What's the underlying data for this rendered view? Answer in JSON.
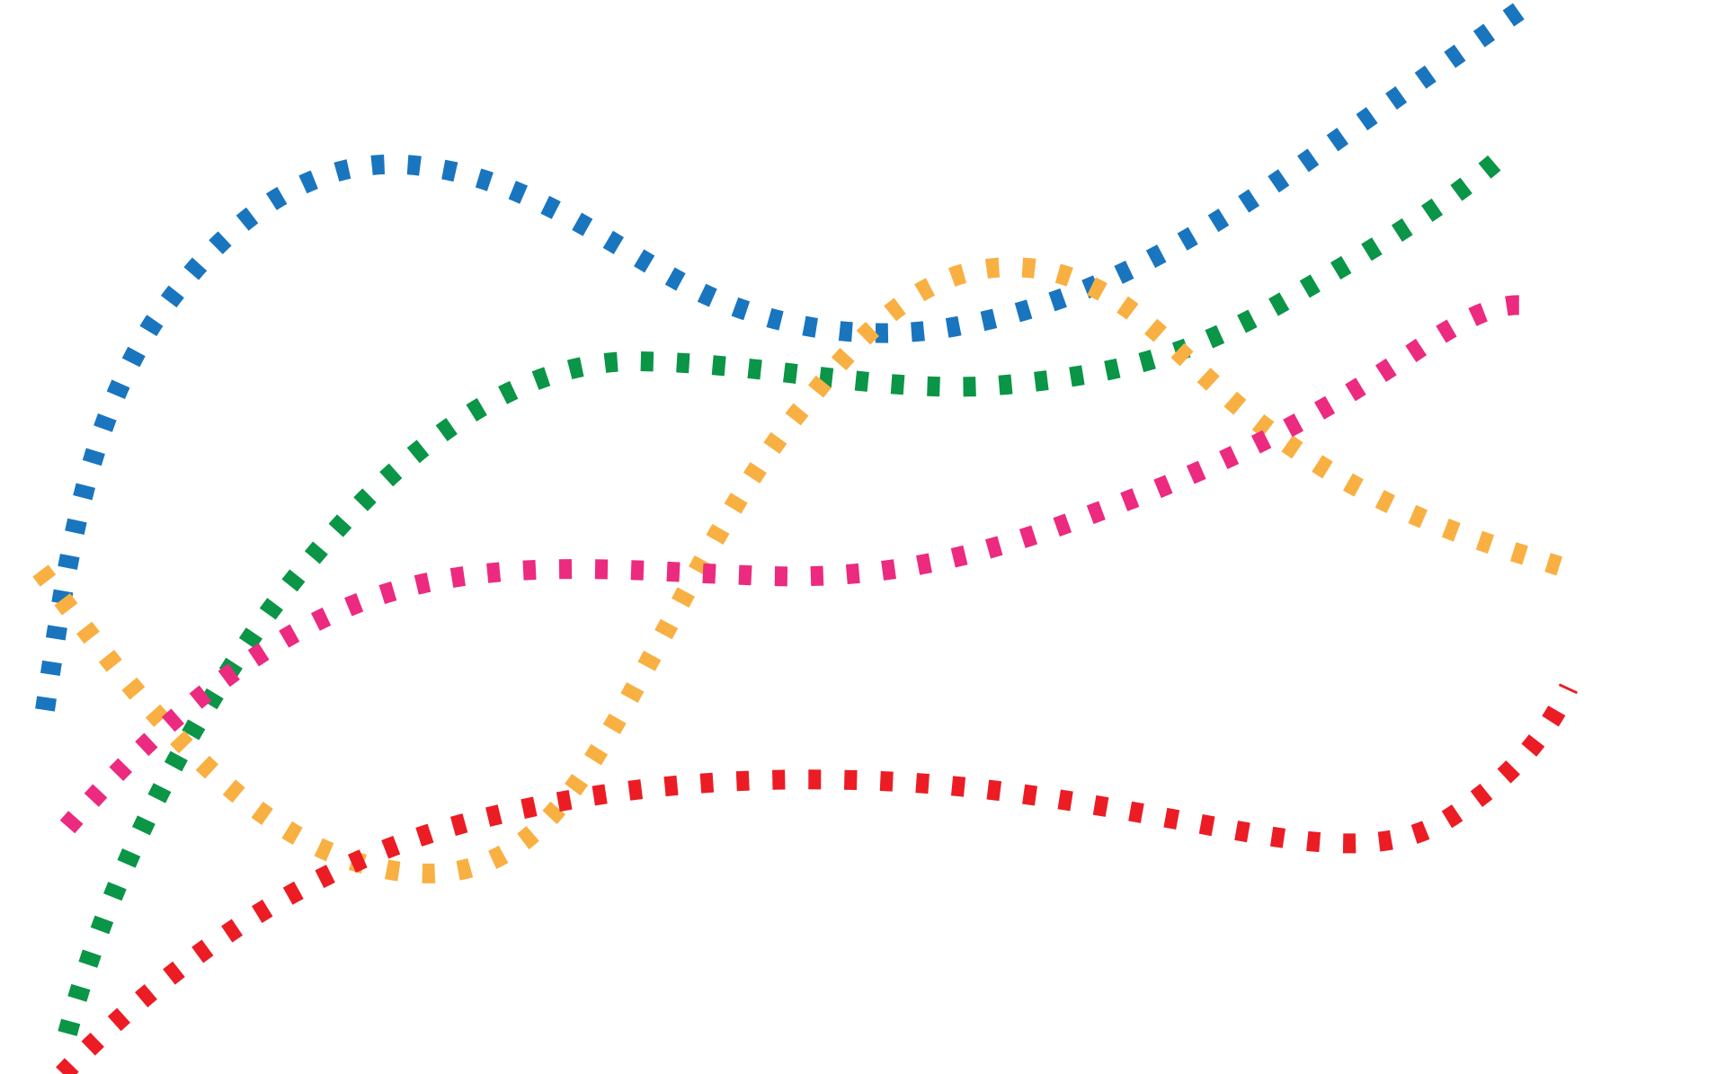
{
  "artwork": {
    "description_visible_text": "",
    "ribbons": [
      {
        "name": "blue-dotted-ribbon",
        "color": "#1a75bf"
      },
      {
        "name": "green-dotted-ribbon",
        "color": "#0a9547"
      },
      {
        "name": "orange-dotted-ribbon",
        "color": "#f9b042"
      },
      {
        "name": "pink-dotted-ribbon",
        "color": "#ec2a7f"
      },
      {
        "name": "red-dotted-ribbon",
        "color": "#ec1c24"
      }
    ]
  }
}
